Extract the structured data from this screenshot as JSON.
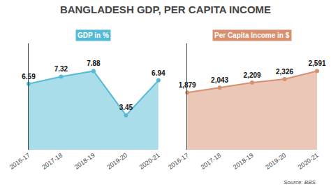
{
  "title": "BANGLADESH GDP, PER CAPITA INCOME",
  "annotations": [
    "Source: BBS"
  ],
  "chart_data": [
    {
      "type": "area",
      "title": "GDP in %",
      "categories": [
        "2016-17",
        "2017-18",
        "2018-19",
        "2019-20",
        "2020-21"
      ],
      "values": [
        6.59,
        7.32,
        7.88,
        3.45,
        6.94
      ],
      "color": "#55bbd5",
      "marker": "circle",
      "ylim": [
        0,
        10.638
      ],
      "tick_labels": "x",
      "grid": false,
      "data_labels": true
    },
    {
      "type": "area",
      "title": "Per Capita Income in $",
      "categories": [
        "2016-17",
        "2017-18",
        "2018-19",
        "2019-20",
        "2020-21"
      ],
      "values": [
        1879,
        2043,
        2209,
        2326,
        2591
      ],
      "value_labels": [
        "1,879",
        "2,043",
        "2,209",
        "2,326",
        "2,591"
      ],
      "color": "#d89070",
      "marker": "circle",
      "ylim": [
        0,
        3497.85
      ],
      "tick_labels": "x",
      "grid": false,
      "data_labels": true
    }
  ]
}
